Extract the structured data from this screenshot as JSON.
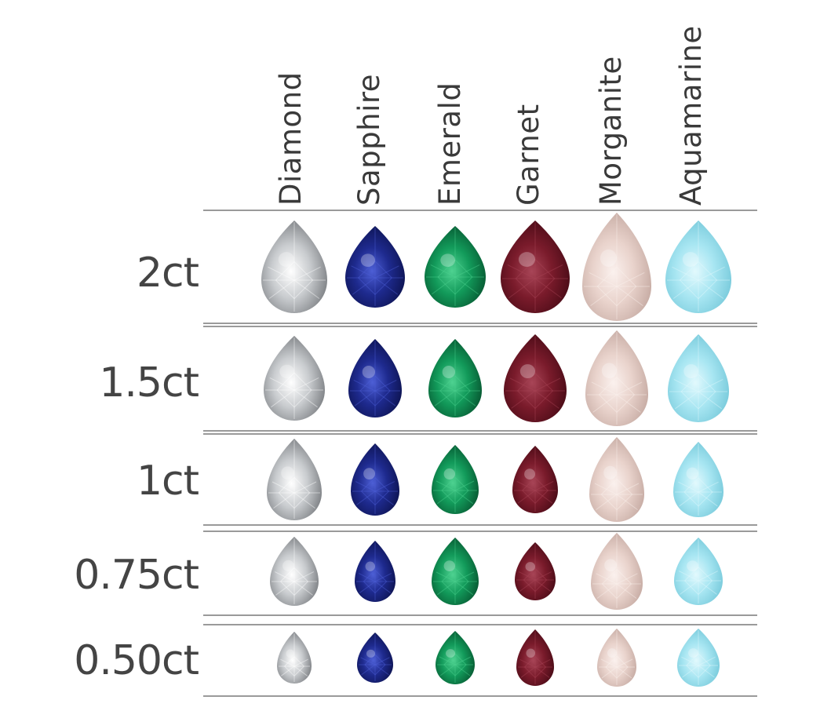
{
  "columns": [
    "Diamond",
    "Sapphire",
    "Emerald",
    "Garnet",
    "Morganite",
    "Aquamarine"
  ],
  "rows": [
    "2ct",
    "1.5ct",
    "1ct",
    "0.75ct",
    "0.50ct"
  ],
  "gem_colors": {
    "Diamond": {
      "base": "#c9cccf",
      "light": "#ffffff",
      "dark": "#6d7074"
    },
    "Sapphire": {
      "base": "#1e2a8e",
      "light": "#4d5fd6",
      "dark": "#0a0f45"
    },
    "Emerald": {
      "base": "#129a5a",
      "light": "#4ed291",
      "dark": "#054a29"
    },
    "Garnet": {
      "base": "#7a1b2b",
      "light": "#a84557",
      "dark": "#3f0812"
    },
    "Morganite": {
      "base": "#e9d3cc",
      "light": "#fbf1ee",
      "dark": "#bfa39b"
    },
    "Aquamarine": {
      "base": "#a8e6f2",
      "light": "#e2f9fd",
      "dark": "#6ec4d6"
    }
  }
}
